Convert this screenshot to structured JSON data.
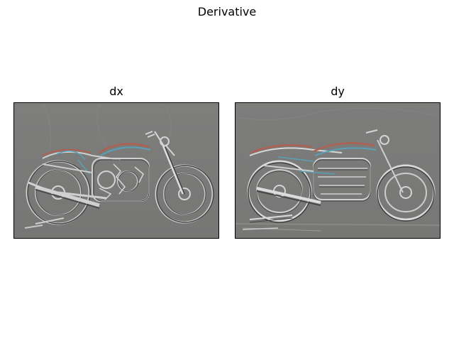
{
  "figure": {
    "title": "Derivative"
  },
  "panels": [
    {
      "title": "dx"
    },
    {
      "title": "dy"
    }
  ],
  "colors": {
    "background": "#7b7b7a",
    "edge_light": "#d8d8d8",
    "edge_dark": "#3c3c3c",
    "tank_red": "#b06050",
    "tank_blue": "#5aa0b8"
  }
}
